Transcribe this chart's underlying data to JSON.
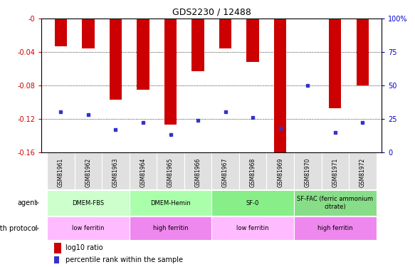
{
  "title": "GDS2230 / 12488",
  "samples": [
    "GSM81961",
    "GSM81962",
    "GSM81963",
    "GSM81964",
    "GSM81965",
    "GSM81966",
    "GSM81967",
    "GSM81968",
    "GSM81969",
    "GSM81970",
    "GSM81971",
    "GSM81972"
  ],
  "log10_ratio": [
    -0.033,
    -0.036,
    -0.097,
    -0.085,
    -0.127,
    -0.063,
    -0.036,
    -0.052,
    -0.16,
    -0.001,
    -0.107,
    -0.08
  ],
  "percentile_rank": [
    30,
    28,
    17,
    22,
    13,
    24,
    30,
    26,
    18,
    50,
    15,
    22
  ],
  "ylim_left": [
    -0.16,
    0
  ],
  "left_yticks": [
    -0.16,
    -0.12,
    -0.08,
    -0.04,
    0
  ],
  "left_yticklabels": [
    "-0.16",
    "-0.12",
    "-0.08",
    "-0.04",
    "-0"
  ],
  "right_yticks": [
    0,
    25,
    50,
    75,
    100
  ],
  "right_yticklabels": [
    "0",
    "25",
    "50",
    "75",
    "100%"
  ],
  "bar_color": "#cc0000",
  "dot_color": "#3333cc",
  "left_tick_color": "#cc0000",
  "right_tick_color": "#0000cc",
  "bar_width": 0.45,
  "agents": [
    {
      "label": "DMEM-FBS",
      "start": 0,
      "end": 3,
      "color": "#ccffcc"
    },
    {
      "label": "DMEM-Hemin",
      "start": 3,
      "end": 6,
      "color": "#aaffaa"
    },
    {
      "label": "SF-0",
      "start": 6,
      "end": 9,
      "color": "#88ee88"
    },
    {
      "label": "SF-FAC (ferric ammonium\ncitrate)",
      "start": 9,
      "end": 12,
      "color": "#88dd88"
    }
  ],
  "growth_protocols": [
    {
      "label": "low ferritin",
      "start": 0,
      "end": 3,
      "color": "#ffbbff"
    },
    {
      "label": "high ferritin",
      "start": 3,
      "end": 6,
      "color": "#ee88ee"
    },
    {
      "label": "low ferritin",
      "start": 6,
      "end": 9,
      "color": "#ffbbff"
    },
    {
      "label": "high ferritin",
      "start": 9,
      "end": 12,
      "color": "#ee88ee"
    }
  ],
  "legend_red_label": "log10 ratio",
  "legend_blue_label": "percentile rank within the sample"
}
